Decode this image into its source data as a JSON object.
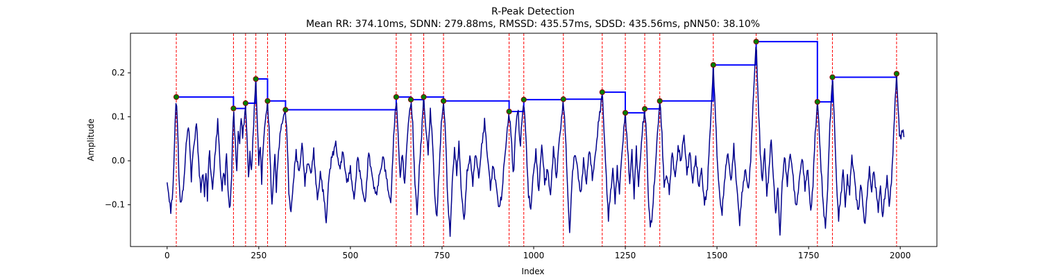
{
  "chart_data": {
    "type": "line",
    "title": "R-Peak Detection",
    "subtitle": "Mean RR: 374.10ms, SDNN: 279.88ms, RMSSD: 435.57ms, SDSD: 435.56ms, pNN50: 38.10%",
    "xlabel": "Index",
    "ylabel": "Amplitude",
    "xlim": [
      -100,
      2100
    ],
    "ylim": [
      -0.195,
      0.29
    ],
    "xticks": [
      0,
      250,
      500,
      750,
      1000,
      1250,
      1500,
      1750,
      2000
    ],
    "yticks": [
      -0.1,
      0.0,
      0.1,
      0.2
    ],
    "ytick_labels": [
      "−0.1",
      "0.0",
      "0.1",
      "0.2"
    ],
    "grid": false,
    "colors": {
      "signal": "#00008b",
      "peak_line": "#ff0000",
      "peak_marker_fill": "#008000",
      "peak_marker_edge": "#8b0000",
      "step_line": "#0000ff"
    },
    "peaks": [
      {
        "x": 25,
        "y": 0.145
      },
      {
        "x": 181,
        "y": 0.119
      },
      {
        "x": 214,
        "y": 0.131
      },
      {
        "x": 242,
        "y": 0.186
      },
      {
        "x": 274,
        "y": 0.136
      },
      {
        "x": 323,
        "y": 0.116
      },
      {
        "x": 625,
        "y": 0.145
      },
      {
        "x": 665,
        "y": 0.139
      },
      {
        "x": 700,
        "y": 0.145
      },
      {
        "x": 754,
        "y": 0.136
      },
      {
        "x": 933,
        "y": 0.112
      },
      {
        "x": 973,
        "y": 0.139
      },
      {
        "x": 1081,
        "y": 0.14
      },
      {
        "x": 1187,
        "y": 0.156
      },
      {
        "x": 1250,
        "y": 0.109
      },
      {
        "x": 1303,
        "y": 0.118
      },
      {
        "x": 1344,
        "y": 0.136
      },
      {
        "x": 1490,
        "y": 0.218
      },
      {
        "x": 1607,
        "y": 0.271
      },
      {
        "x": 1774,
        "y": 0.134
      },
      {
        "x": 1815,
        "y": 0.19
      },
      {
        "x": 1990,
        "y": 0.198
      }
    ],
    "signal": {
      "x_start": 0,
      "x_end": 2010,
      "anchors": [
        [
          0,
          -0.053
        ],
        [
          6,
          -0.085
        ],
        [
          10,
          -0.118
        ],
        [
          16,
          -0.06
        ],
        [
          20,
          0.03
        ],
        [
          23,
          0.12
        ],
        [
          25,
          0.145
        ],
        [
          28,
          0.09
        ],
        [
          33,
          -0.06
        ],
        [
          38,
          -0.1
        ],
        [
          43,
          -0.07
        ],
        [
          48,
          -0.02
        ],
        [
          53,
          0.05
        ],
        [
          58,
          0.08
        ],
        [
          62,
          0.03
        ],
        [
          66,
          -0.04
        ],
        [
          70,
          0.01
        ],
        [
          75,
          0.05
        ],
        [
          80,
          0.085
        ],
        [
          84,
          0.03
        ],
        [
          88,
          -0.03
        ],
        [
          92,
          -0.07
        ],
        [
          97,
          -0.02
        ],
        [
          102,
          -0.08
        ],
        [
          106,
          -0.02
        ],
        [
          110,
          -0.09
        ],
        [
          115,
          0.04
        ],
        [
          119,
          -0.03
        ],
        [
          124,
          -0.06
        ],
        [
          129,
          -0.01
        ],
        [
          134,
          0.05
        ],
        [
          138,
          0.09
        ],
        [
          142,
          0.03
        ],
        [
          146,
          -0.03
        ],
        [
          150,
          -0.07
        ],
        [
          154,
          -0.02
        ],
        [
          158,
          -0.05
        ],
        [
          162,
          0.02
        ],
        [
          167,
          -0.08
        ],
        [
          171,
          -0.12
        ],
        [
          176,
          -0.03
        ],
        [
          179,
          0.06
        ],
        [
          181,
          0.119
        ],
        [
          185,
          0.06
        ],
        [
          190,
          -0.03
        ],
        [
          194,
          0.07
        ],
        [
          198,
          0.04
        ],
        [
          202,
          0.1
        ],
        [
          206,
          0.06
        ],
        [
          211,
          0.09
        ],
        [
          214,
          0.131
        ],
        [
          218,
          0.05
        ],
        [
          222,
          -0.04
        ],
        [
          226,
          0.02
        ],
        [
          230,
          -0.03
        ],
        [
          234,
          0.05
        ],
        [
          238,
          0.12
        ],
        [
          242,
          0.186
        ],
        [
          246,
          0.09
        ],
        [
          250,
          -0.01
        ],
        [
          254,
          0.04
        ],
        [
          258,
          -0.05
        ],
        [
          262,
          0.03
        ],
        [
          266,
          0.08
        ],
        [
          270,
          0.1
        ],
        [
          274,
          0.136
        ],
        [
          278,
          0.07
        ],
        [
          282,
          -0.02
        ],
        [
          286,
          -0.1
        ],
        [
          290,
          -0.05
        ],
        [
          294,
          0.02
        ],
        [
          298,
          -0.07
        ],
        [
          302,
          0.0
        ],
        [
          306,
          0.04
        ],
        [
          310,
          0.07
        ],
        [
          314,
          0.09
        ],
        [
          318,
          0.1
        ],
        [
          323,
          0.116
        ],
        [
          327,
          0.06
        ],
        [
          332,
          -0.07
        ],
        [
          338,
          -0.12
        ],
        [
          345,
          -0.04
        ],
        [
          352,
          0.02
        ],
        [
          360,
          -0.03
        ],
        [
          368,
          0.04
        ],
        [
          376,
          -0.05
        ],
        [
          384,
          0.0
        ],
        [
          392,
          -0.03
        ],
        [
          400,
          0.02
        ],
        [
          410,
          -0.09
        ],
        [
          418,
          -0.03
        ],
        [
          426,
          -0.07
        ],
        [
          434,
          -0.14
        ],
        [
          442,
          -0.03
        ],
        [
          450,
          0.01
        ],
        [
          460,
          0.04
        ],
        [
          470,
          -0.02
        ],
        [
          480,
          0.02
        ],
        [
          490,
          -0.05
        ],
        [
          500,
          -0.02
        ],
        [
          510,
          -0.09
        ],
        [
          520,
          0.01
        ],
        [
          530,
          -0.05
        ],
        [
          540,
          -0.1
        ],
        [
          550,
          0.02
        ],
        [
          560,
          -0.04
        ],
        [
          570,
          -0.08
        ],
        [
          580,
          -0.03
        ],
        [
          590,
          0.01
        ],
        [
          600,
          -0.05
        ],
        [
          610,
          -0.1
        ],
        [
          615,
          0.0
        ],
        [
          620,
          0.08
        ],
        [
          625,
          0.145
        ],
        [
          630,
          0.06
        ],
        [
          636,
          -0.04
        ],
        [
          642,
          0.02
        ],
        [
          648,
          -0.06
        ],
        [
          654,
          0.04
        ],
        [
          660,
          0.1
        ],
        [
          665,
          0.139
        ],
        [
          670,
          0.08
        ],
        [
          676,
          -0.05
        ],
        [
          682,
          -0.12
        ],
        [
          688,
          -0.02
        ],
        [
          694,
          0.06
        ],
        [
          700,
          0.145
        ],
        [
          706,
          0.07
        ],
        [
          712,
          0.02
        ],
        [
          718,
          0.11
        ],
        [
          724,
          0.05
        ],
        [
          730,
          -0.08
        ],
        [
          736,
          -0.13
        ],
        [
          742,
          -0.02
        ],
        [
          748,
          0.08
        ],
        [
          754,
          0.136
        ],
        [
          760,
          0.05
        ],
        [
          766,
          -0.1
        ],
        [
          772,
          -0.165
        ],
        [
          778,
          -0.05
        ],
        [
          784,
          0.03
        ],
        [
          790,
          -0.03
        ],
        [
          796,
          0.04
        ],
        [
          802,
          -0.06
        ],
        [
          810,
          -0.14
        ],
        [
          818,
          -0.03
        ],
        [
          826,
          0.01
        ],
        [
          834,
          -0.05
        ],
        [
          842,
          0.02
        ],
        [
          850,
          -0.04
        ],
        [
          858,
          0.03
        ],
        [
          866,
          0.09
        ],
        [
          874,
          0.01
        ],
        [
          882,
          -0.06
        ],
        [
          890,
          -0.01
        ],
        [
          898,
          -0.06
        ],
        [
          906,
          -0.11
        ],
        [
          914,
          -0.07
        ],
        [
          920,
          0.0
        ],
        [
          927,
          0.06
        ],
        [
          933,
          0.112
        ],
        [
          939,
          0.05
        ],
        [
          945,
          -0.04
        ],
        [
          951,
          0.08
        ],
        [
          957,
          0.12
        ],
        [
          963,
          0.03
        ],
        [
          969,
          0.1
        ],
        [
          973,
          0.139
        ],
        [
          979,
          0.05
        ],
        [
          986,
          -0.08
        ],
        [
          992,
          -0.11
        ],
        [
          999,
          -0.03
        ],
        [
          1006,
          0.02
        ],
        [
          1014,
          -0.07
        ],
        [
          1022,
          0.04
        ],
        [
          1030,
          -0.05
        ],
        [
          1038,
          -0.02
        ],
        [
          1046,
          -0.08
        ],
        [
          1054,
          0.03
        ],
        [
          1062,
          -0.04
        ],
        [
          1070,
          0.05
        ],
        [
          1077,
          0.1
        ],
        [
          1081,
          0.14
        ],
        [
          1086,
          0.07
        ],
        [
          1092,
          -0.05
        ],
        [
          1098,
          -0.17
        ],
        [
          1104,
          -0.05
        ],
        [
          1112,
          0.02
        ],
        [
          1120,
          -0.02
        ],
        [
          1128,
          -0.08
        ],
        [
          1136,
          0.0
        ],
        [
          1144,
          -0.05
        ],
        [
          1152,
          0.03
        ],
        [
          1160,
          -0.04
        ],
        [
          1168,
          0.01
        ],
        [
          1176,
          0.08
        ],
        [
          1182,
          0.12
        ],
        [
          1187,
          0.156
        ],
        [
          1192,
          0.07
        ],
        [
          1198,
          -0.04
        ],
        [
          1204,
          -0.13
        ],
        [
          1210,
          -0.07
        ],
        [
          1216,
          -0.02
        ],
        [
          1222,
          -0.09
        ],
        [
          1228,
          -0.02
        ],
        [
          1234,
          -0.07
        ],
        [
          1240,
          0.01
        ],
        [
          1245,
          0.06
        ],
        [
          1250,
          0.109
        ],
        [
          1256,
          0.03
        ],
        [
          1262,
          -0.05
        ],
        [
          1268,
          0.02
        ],
        [
          1274,
          -0.08
        ],
        [
          1280,
          0.03
        ],
        [
          1286,
          -0.06
        ],
        [
          1292,
          0.02
        ],
        [
          1298,
          0.08
        ],
        [
          1303,
          0.118
        ],
        [
          1308,
          0.05
        ],
        [
          1313,
          -0.09
        ],
        [
          1318,
          -0.15
        ],
        [
          1324,
          -0.12
        ],
        [
          1330,
          -0.04
        ],
        [
          1336,
          0.04
        ],
        [
          1344,
          0.136
        ],
        [
          1350,
          0.06
        ],
        [
          1356,
          -0.06
        ],
        [
          1362,
          -0.03
        ],
        [
          1370,
          -0.07
        ],
        [
          1378,
          0.02
        ],
        [
          1386,
          -0.04
        ],
        [
          1394,
          0.03
        ],
        [
          1402,
          0.0
        ],
        [
          1410,
          0.06
        ],
        [
          1418,
          -0.03
        ],
        [
          1426,
          0.02
        ],
        [
          1434,
          -0.05
        ],
        [
          1442,
          0.01
        ],
        [
          1450,
          -0.06
        ],
        [
          1458,
          -0.02
        ],
        [
          1466,
          -0.1
        ],
        [
          1474,
          -0.06
        ],
        [
          1480,
          0.05
        ],
        [
          1486,
          0.14
        ],
        [
          1490,
          0.218
        ],
        [
          1495,
          0.12
        ],
        [
          1501,
          0.0
        ],
        [
          1507,
          -0.08
        ],
        [
          1514,
          -0.12
        ],
        [
          1522,
          -0.03
        ],
        [
          1530,
          0.02
        ],
        [
          1538,
          -0.05
        ],
        [
          1546,
          0.03
        ],
        [
          1554,
          -0.06
        ],
        [
          1562,
          -0.14
        ],
        [
          1570,
          -0.06
        ],
        [
          1578,
          -0.02
        ],
        [
          1586,
          -0.07
        ],
        [
          1593,
          0.02
        ],
        [
          1600,
          0.16
        ],
        [
          1607,
          0.271
        ],
        [
          1612,
          0.15
        ],
        [
          1618,
          0.02
        ],
        [
          1624,
          -0.05
        ],
        [
          1630,
          0.03
        ],
        [
          1636,
          -0.08
        ],
        [
          1642,
          -0.02
        ],
        [
          1648,
          0.05
        ],
        [
          1654,
          -0.04
        ],
        [
          1660,
          -0.12
        ],
        [
          1666,
          -0.06
        ],
        [
          1672,
          -0.17
        ],
        [
          1678,
          -0.05
        ],
        [
          1684,
          0.01
        ],
        [
          1692,
          -0.05
        ],
        [
          1700,
          0.02
        ],
        [
          1708,
          -0.04
        ],
        [
          1716,
          -0.11
        ],
        [
          1724,
          -0.05
        ],
        [
          1732,
          0.01
        ],
        [
          1740,
          -0.06
        ],
        [
          1748,
          -0.02
        ],
        [
          1756,
          -0.12
        ],
        [
          1762,
          -0.05
        ],
        [
          1768,
          0.06
        ],
        [
          1774,
          0.134
        ],
        [
          1779,
          0.07
        ],
        [
          1784,
          -0.02
        ],
        [
          1790,
          -0.1
        ],
        [
          1796,
          -0.155
        ],
        [
          1802,
          -0.06
        ],
        [
          1808,
          0.08
        ],
        [
          1815,
          0.19
        ],
        [
          1820,
          0.1
        ],
        [
          1826,
          -0.05
        ],
        [
          1832,
          -0.13
        ],
        [
          1838,
          -0.08
        ],
        [
          1844,
          -0.02
        ],
        [
          1850,
          -0.1
        ],
        [
          1856,
          -0.04
        ],
        [
          1862,
          -0.07
        ],
        [
          1868,
          0.01
        ],
        [
          1874,
          -0.03
        ],
        [
          1880,
          -0.08
        ],
        [
          1886,
          -0.12
        ],
        [
          1892,
          -0.05
        ],
        [
          1898,
          -0.1
        ],
        [
          1904,
          -0.15
        ],
        [
          1910,
          -0.07
        ],
        [
          1916,
          -0.02
        ],
        [
          1922,
          -0.07
        ],
        [
          1928,
          -0.02
        ],
        [
          1934,
          -0.07
        ],
        [
          1940,
          -0.11
        ],
        [
          1946,
          -0.06
        ],
        [
          1952,
          -0.13
        ],
        [
          1958,
          -0.08
        ],
        [
          1964,
          -0.04
        ],
        [
          1970,
          -0.1
        ],
        [
          1976,
          -0.05
        ],
        [
          1982,
          0.06
        ],
        [
          1987,
          0.15
        ],
        [
          1990,
          0.198
        ],
        [
          1994,
          0.12
        ],
        [
          1998,
          0.06
        ],
        [
          2003,
          0.055
        ],
        [
          2006,
          0.068
        ],
        [
          2010,
          0.063
        ]
      ]
    }
  }
}
